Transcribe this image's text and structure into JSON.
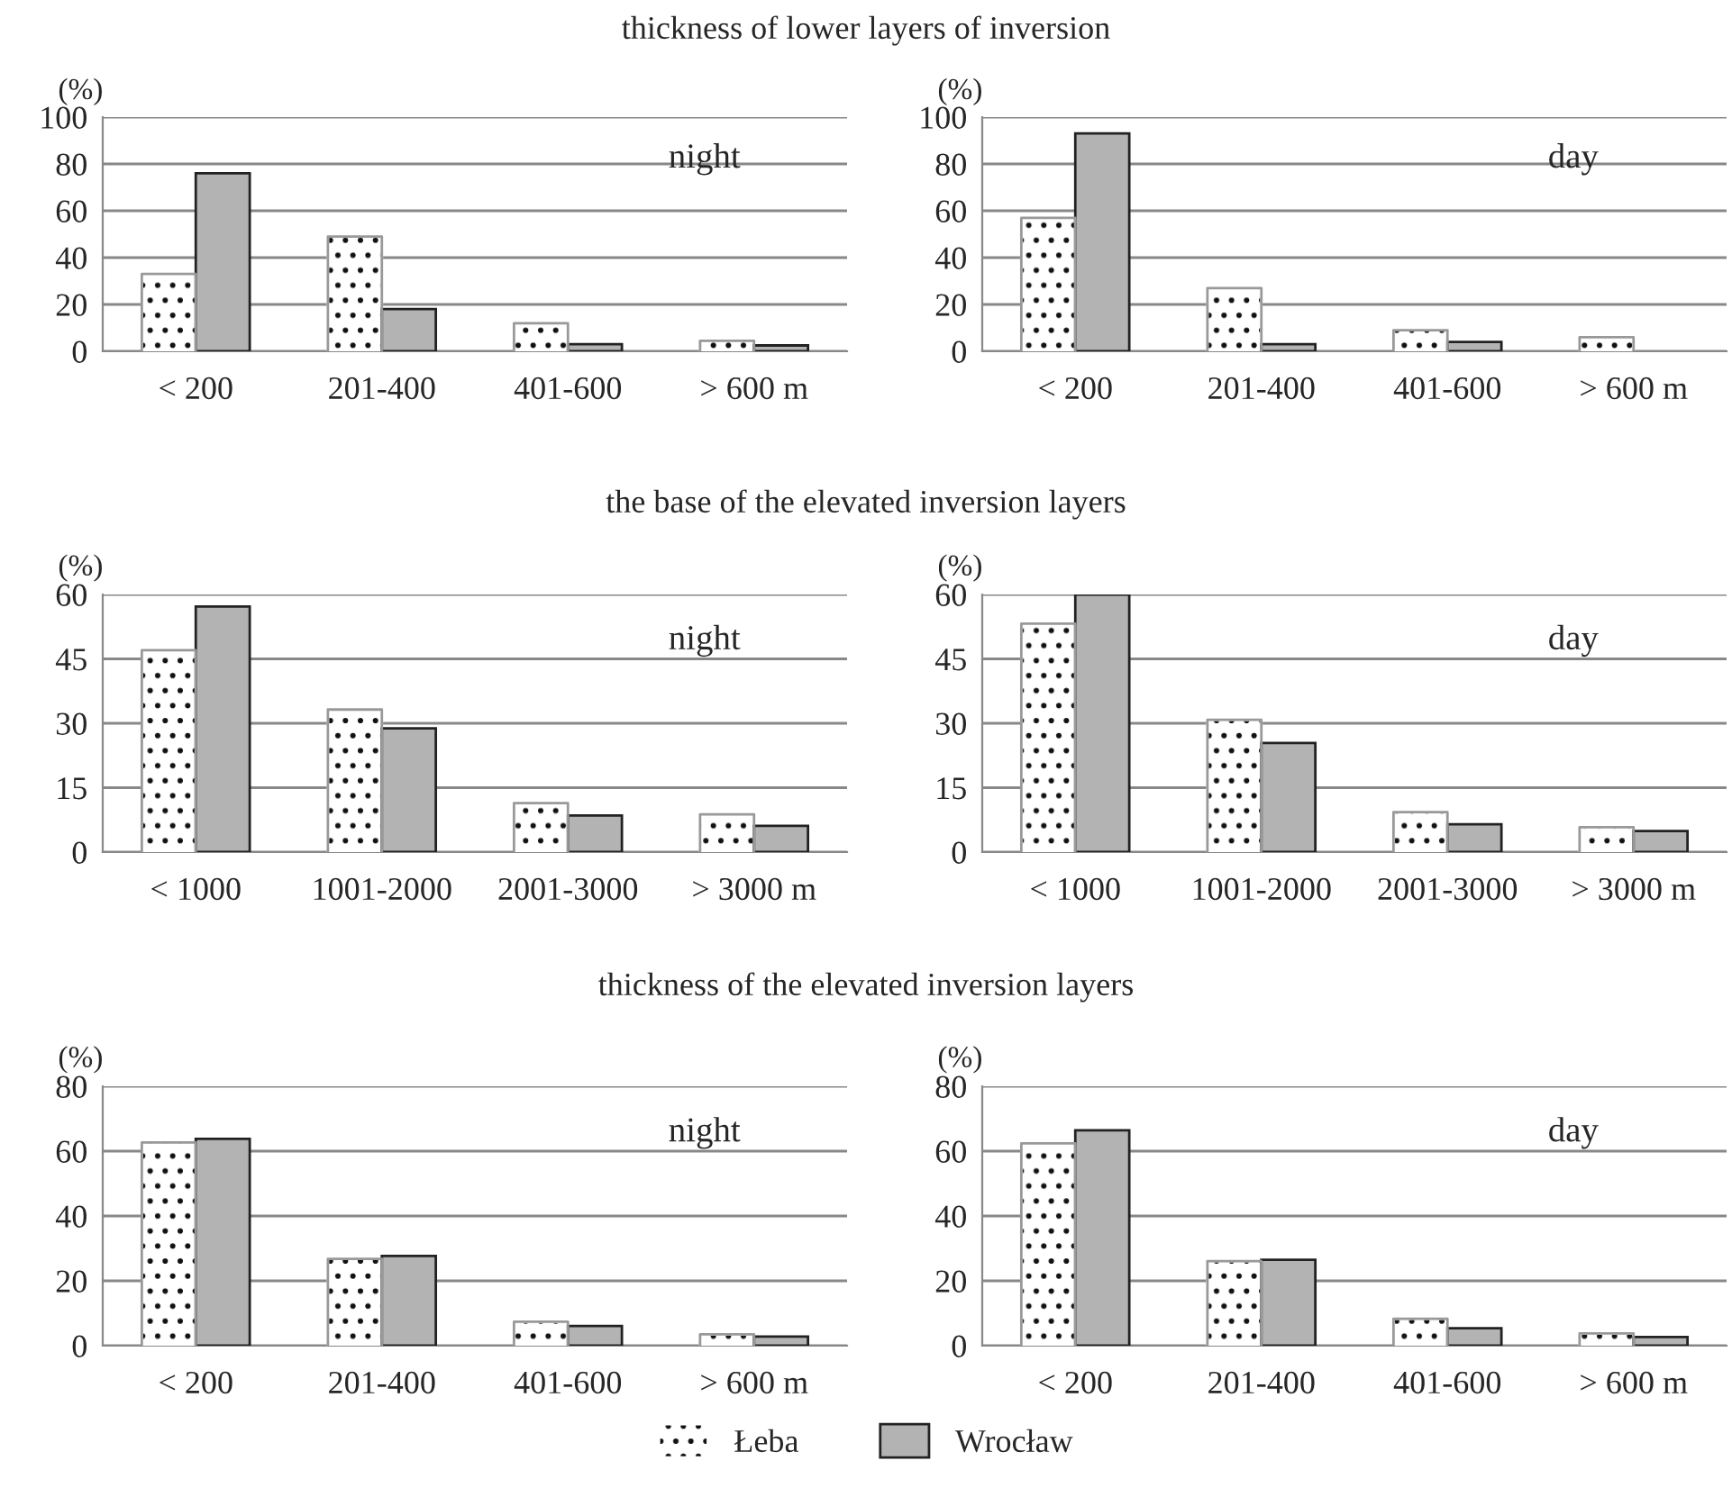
{
  "chart_data": [
    {
      "type": "bar",
      "title": "thickness of lower layers of inversion",
      "ylabel": "(%)",
      "annotations": [
        "night"
      ],
      "categories": [
        "< 200",
        "201-400",
        "401-600",
        "> 600 m"
      ],
      "series": [
        {
          "color": "#ffffff",
          "values": [
            33,
            49,
            12,
            4.5
          ]
        },
        {
          "color": "#b3b3b3",
          "values": [
            76,
            18,
            3,
            2.5
          ]
        }
      ],
      "ylim": [
        0,
        100
      ],
      "yticks": [
        0,
        20,
        40,
        60,
        80,
        100
      ],
      "grid": "y"
    },
    {
      "type": "bar",
      "ylabel": "(%)",
      "annotations": [
        "day"
      ],
      "categories": [
        "< 200",
        "201-400",
        "401-600",
        "> 600 m"
      ],
      "series": [
        {
          "color": "#ffffff",
          "values": [
            57,
            27,
            9,
            6
          ]
        },
        {
          "color": "#b3b3b3",
          "values": [
            93,
            3,
            4,
            null
          ]
        }
      ],
      "ylim": [
        0,
        100
      ],
      "yticks": [
        0,
        20,
        40,
        60,
        80,
        100
      ],
      "grid": "y"
    },
    {
      "type": "bar",
      "title": "the base of the elevated inversion layers",
      "ylabel": "(%)",
      "annotations": [
        "night"
      ],
      "categories": [
        "< 1000",
        "1001-2000",
        "2001-3000",
        "> 3000 m"
      ],
      "series": [
        {
          "color": "#ffffff",
          "values": [
            47,
            33.2,
            11.4,
            8.8
          ]
        },
        {
          "color": "#b3b3b3",
          "values": [
            57.2,
            28.8,
            8.5,
            6.1
          ]
        }
      ],
      "ylim": [
        0,
        60
      ],
      "yticks": [
        0,
        15,
        30,
        45,
        60
      ],
      "grid": "y"
    },
    {
      "type": "bar",
      "ylabel": "(%)",
      "annotations": [
        "day"
      ],
      "categories": [
        "< 1000",
        "1001-2000",
        "2001-3000",
        "> 3000 m"
      ],
      "series": [
        {
          "color": "#ffffff",
          "values": [
            53.2,
            30.8,
            9.3,
            5.8
          ]
        },
        {
          "color": "#b3b3b3",
          "values": [
            60,
            25.4,
            6.5,
            4.9
          ]
        }
      ],
      "ylim": [
        0,
        60
      ],
      "yticks": [
        0,
        15,
        30,
        45,
        60
      ],
      "grid": "y"
    },
    {
      "type": "bar",
      "title": "thickness of the elevated inversion layers",
      "ylabel": "(%)",
      "annotations": [
        "night"
      ],
      "categories": [
        "< 200",
        "201-400",
        "401-600",
        "> 600 m"
      ],
      "series": [
        {
          "color": "#ffffff",
          "values": [
            62.7,
            26.8,
            7.4,
            3.5
          ]
        },
        {
          "color": "#b3b3b3",
          "values": [
            63.8,
            27.7,
            6.1,
            2.8
          ]
        }
      ],
      "ylim": [
        0,
        80
      ],
      "yticks": [
        0,
        20,
        40,
        60,
        80
      ],
      "grid": "y"
    },
    {
      "type": "bar",
      "ylabel": "(%)",
      "annotations": [
        "day"
      ],
      "categories": [
        "< 200",
        "201-400",
        "401-600",
        "> 600 m"
      ],
      "legend": "bottom",
      "series": [
        {
          "name": "Łeba",
          "color": "#ffffff",
          "values": [
            62.4,
            26.1,
            8.3,
            3.8
          ]
        },
        {
          "name": "Wrocław",
          "color": "#b3b3b3",
          "values": [
            66.4,
            26.5,
            5.4,
            2.7
          ]
        }
      ],
      "ylim": [
        0,
        80
      ],
      "yticks": [
        0,
        20,
        40,
        60,
        80
      ],
      "grid": "y"
    }
  ]
}
